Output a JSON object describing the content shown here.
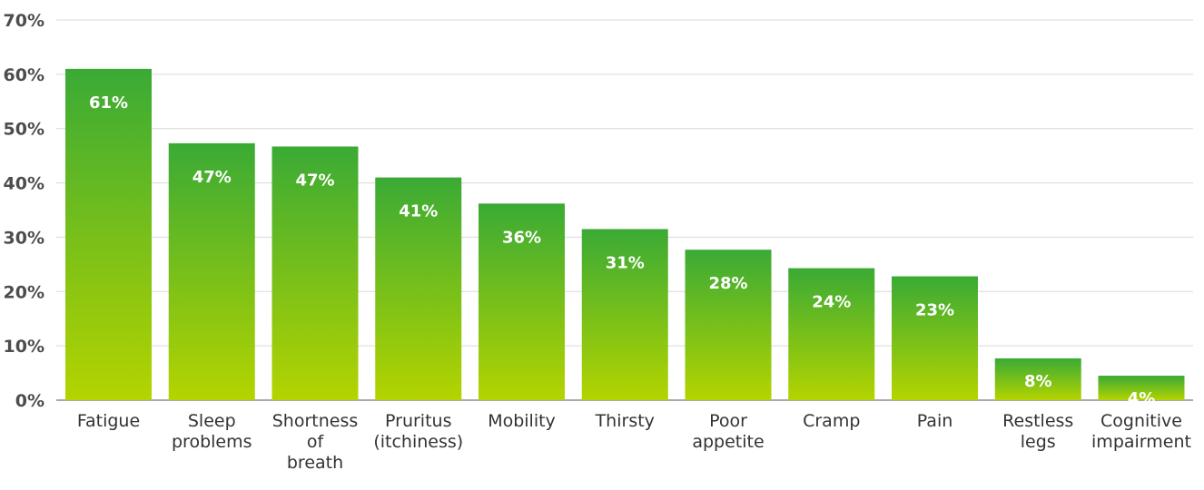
{
  "chart_data": {
    "type": "bar",
    "title": "",
    "xlabel": "",
    "ylabel": "",
    "categories": [
      [
        "Fatigue"
      ],
      [
        "Sleep",
        "problems"
      ],
      [
        "Shortness",
        "of",
        "breath"
      ],
      [
        "Pruritus",
        "(itchiness)"
      ],
      [
        "Mobility"
      ],
      [
        "Thirsty"
      ],
      [
        "Poor",
        "appetite"
      ],
      [
        "Cramp"
      ],
      [
        "Pain"
      ],
      [
        "Restless",
        "legs"
      ],
      [
        "Cognitive",
        "impairment"
      ]
    ],
    "values": [
      61,
      47.3,
      46.7,
      41,
      36.2,
      31.5,
      27.7,
      24.3,
      22.8,
      7.7,
      4.5
    ],
    "data_labels": [
      "61%",
      "47%",
      "47%",
      "41%",
      "36%",
      "31%",
      "28%",
      "24%",
      "23%",
      "8%",
      "4%"
    ],
    "ylim": [
      0,
      70
    ],
    "y_ticks": [
      0,
      10,
      20,
      30,
      40,
      50,
      60,
      70
    ],
    "y_tick_labels": [
      "0%",
      "10%",
      "20%",
      "30%",
      "40%",
      "50%",
      "60%",
      "70%"
    ],
    "grid": true,
    "legend": "none",
    "colors": {
      "bar_top": "#3aaa35",
      "bar_bottom": "#b4d400",
      "grid": "#d9d9d9",
      "axis_text": "#4d4d4d",
      "label_text": "#ffffff"
    }
  }
}
